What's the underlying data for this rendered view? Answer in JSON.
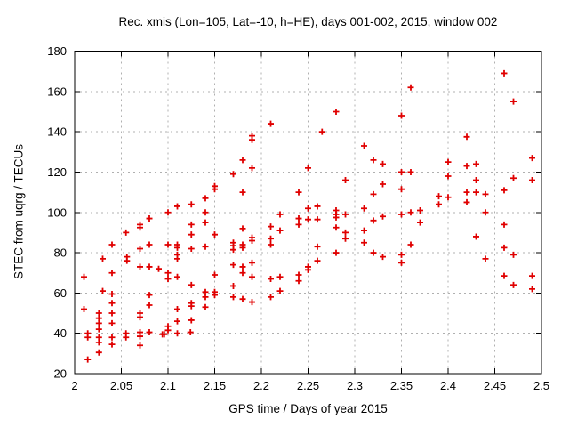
{
  "chart_data": {
    "type": "scatter",
    "title": "Rec. xmis (Lon=105, Lat=-10, h=HE), days 001-002, 2015, window 002",
    "xlabel": "GPS time / Days of year 2015",
    "ylabel": "STEC from uqrg / TECUs",
    "xlim": [
      2.0,
      2.5
    ],
    "ylim": [
      20,
      180
    ],
    "xticks": [
      2.0,
      2.05,
      2.1,
      2.15,
      2.2,
      2.25,
      2.3,
      2.35,
      2.4,
      2.45,
      2.5
    ],
    "yticks": [
      20,
      40,
      60,
      80,
      100,
      120,
      140,
      160,
      180
    ],
    "grid": true,
    "legend": "none",
    "marker": {
      "symbol": "plus",
      "color": "#e00000",
      "size": 7
    },
    "frame_color": "#000000",
    "grid_color": "#b0b0b0",
    "series": [
      {
        "name": "STEC",
        "points": [
          [
            2.21,
            144
          ],
          [
            2.19,
            138
          ],
          [
            2.19,
            136
          ],
          [
            2.18,
            126
          ],
          [
            2.36,
            162
          ],
          [
            2.28,
            150
          ],
          [
            2.35,
            148
          ],
          [
            2.265,
            140
          ],
          [
            2.31,
            133
          ],
          [
            2.32,
            126
          ],
          [
            2.46,
            169
          ],
          [
            2.47,
            155
          ],
          [
            2.42,
            137.5
          ],
          [
            2.49,
            127
          ],
          [
            2.11,
            103
          ],
          [
            2.125,
            104
          ],
          [
            2.1,
            100
          ],
          [
            2.08,
            97
          ],
          [
            2.07,
            94
          ],
          [
            2.07,
            92.5
          ],
          [
            2.055,
            90
          ],
          [
            2.125,
            94
          ],
          [
            2.125,
            89
          ],
          [
            2.04,
            84
          ],
          [
            2.07,
            82
          ],
          [
            2.08,
            84
          ],
          [
            2.1,
            84
          ],
          [
            2.11,
            84
          ],
          [
            2.11,
            82.5
          ],
          [
            2.125,
            82
          ],
          [
            2.03,
            77
          ],
          [
            2.11,
            79
          ],
          [
            2.11,
            77
          ],
          [
            2.056,
            78
          ],
          [
            2.056,
            76
          ],
          [
            2.19,
            122
          ],
          [
            2.25,
            122
          ],
          [
            2.17,
            119
          ],
          [
            2.15,
            113
          ],
          [
            2.15,
            111.5
          ],
          [
            2.18,
            110
          ],
          [
            2.24,
            110
          ],
          [
            2.14,
            107
          ],
          [
            2.14,
            100
          ],
          [
            2.22,
            99
          ],
          [
            2.24,
            97
          ],
          [
            2.14,
            95
          ],
          [
            2.24,
            94
          ],
          [
            2.18,
            92
          ],
          [
            2.22,
            91
          ],
          [
            2.21,
            93
          ],
          [
            2.15,
            89
          ],
          [
            2.19,
            87.5
          ],
          [
            2.19,
            86
          ],
          [
            2.21,
            87
          ],
          [
            2.21,
            84
          ],
          [
            2.17,
            85
          ],
          [
            2.17,
            83.5
          ],
          [
            2.18,
            84
          ],
          [
            2.18,
            82.5
          ],
          [
            2.14,
            83
          ],
          [
            2.17,
            81.5
          ],
          [
            2.19,
            75
          ],
          [
            2.33,
            124
          ],
          [
            2.35,
            120
          ],
          [
            2.36,
            120
          ],
          [
            2.29,
            116
          ],
          [
            2.33,
            114
          ],
          [
            2.35,
            111.5
          ],
          [
            2.32,
            109
          ],
          [
            2.26,
            103
          ],
          [
            2.28,
            101
          ],
          [
            2.31,
            102
          ],
          [
            2.28,
            99
          ],
          [
            2.28,
            97.5
          ],
          [
            2.29,
            99
          ],
          [
            2.25,
            102
          ],
          [
            2.25,
            96.5
          ],
          [
            2.26,
            96.5
          ],
          [
            2.32,
            96
          ],
          [
            2.33,
            98
          ],
          [
            2.35,
            99
          ],
          [
            2.36,
            100
          ],
          [
            2.37,
            101
          ],
          [
            2.37,
            95
          ],
          [
            2.28,
            92.5
          ],
          [
            2.29,
            90
          ],
          [
            2.29,
            87
          ],
          [
            2.31,
            91
          ],
          [
            2.31,
            85
          ],
          [
            2.26,
            83
          ],
          [
            2.28,
            80
          ],
          [
            2.36,
            84
          ],
          [
            2.32,
            80
          ],
          [
            2.33,
            78
          ],
          [
            2.26,
            76
          ],
          [
            2.35,
            79
          ],
          [
            2.35,
            75
          ],
          [
            2.4,
            125
          ],
          [
            2.42,
            123
          ],
          [
            2.43,
            124
          ],
          [
            2.4,
            118
          ],
          [
            2.43,
            116
          ],
          [
            2.47,
            117
          ],
          [
            2.49,
            116
          ],
          [
            2.42,
            110
          ],
          [
            2.43,
            110
          ],
          [
            2.46,
            111
          ],
          [
            2.44,
            109
          ],
          [
            2.39,
            108
          ],
          [
            2.4,
            107.5
          ],
          [
            2.42,
            105
          ],
          [
            2.39,
            104
          ],
          [
            2.44,
            100
          ],
          [
            2.46,
            94
          ],
          [
            2.43,
            88
          ],
          [
            2.46,
            82.5
          ],
          [
            2.47,
            79
          ],
          [
            2.44,
            77
          ],
          [
            2.04,
            70
          ],
          [
            2.01,
            68
          ],
          [
            2.07,
            73
          ],
          [
            2.08,
            73
          ],
          [
            2.09,
            72
          ],
          [
            2.1,
            70
          ],
          [
            2.1,
            67
          ],
          [
            2.11,
            68
          ],
          [
            2.125,
            64
          ],
          [
            2.03,
            61
          ],
          [
            2.04,
            59.5
          ],
          [
            2.04,
            55
          ],
          [
            2.08,
            59
          ],
          [
            2.08,
            54
          ],
          [
            2.01,
            52
          ],
          [
            2.07,
            50
          ],
          [
            2.07,
            48
          ],
          [
            2.04,
            50
          ],
          [
            2.026,
            50
          ],
          [
            2.026,
            47.5
          ],
          [
            2.026,
            45
          ],
          [
            2.026,
            42
          ],
          [
            2.04,
            45
          ],
          [
            2.1,
            43.5
          ],
          [
            2.1,
            41.5
          ],
          [
            2.11,
            52
          ],
          [
            2.11,
            46
          ],
          [
            2.125,
            55
          ],
          [
            2.125,
            53.5
          ],
          [
            2.125,
            46.5
          ],
          [
            2.014,
            40
          ],
          [
            2.014,
            38
          ],
          [
            2.026,
            38
          ],
          [
            2.026,
            35.5
          ],
          [
            2.04,
            38
          ],
          [
            2.04,
            34.5
          ],
          [
            2.055,
            40
          ],
          [
            2.055,
            38
          ],
          [
            2.07,
            40.5
          ],
          [
            2.07,
            38.5
          ],
          [
            2.08,
            40.5
          ],
          [
            2.094,
            39.5
          ],
          [
            2.096,
            39.5
          ],
          [
            2.11,
            40
          ],
          [
            2.124,
            40.5
          ],
          [
            2.026,
            30.5
          ],
          [
            2.014,
            27
          ],
          [
            2.07,
            34
          ],
          [
            2.17,
            74
          ],
          [
            2.18,
            73
          ],
          [
            2.18,
            70
          ],
          [
            2.15,
            69
          ],
          [
            2.19,
            68
          ],
          [
            2.21,
            67
          ],
          [
            2.22,
            68
          ],
          [
            2.24,
            69
          ],
          [
            2.24,
            66
          ],
          [
            2.25,
            73
          ],
          [
            2.25,
            71.5
          ],
          [
            2.17,
            63.5
          ],
          [
            2.14,
            60.5
          ],
          [
            2.14,
            58
          ],
          [
            2.15,
            60.5
          ],
          [
            2.15,
            59
          ],
          [
            2.17,
            58
          ],
          [
            2.18,
            57
          ],
          [
            2.19,
            55.5
          ],
          [
            2.21,
            58
          ],
          [
            2.22,
            61
          ],
          [
            2.14,
            53
          ],
          [
            2.46,
            68.5
          ],
          [
            2.49,
            68.5
          ],
          [
            2.47,
            64
          ],
          [
            2.49,
            62
          ]
        ]
      }
    ]
  }
}
